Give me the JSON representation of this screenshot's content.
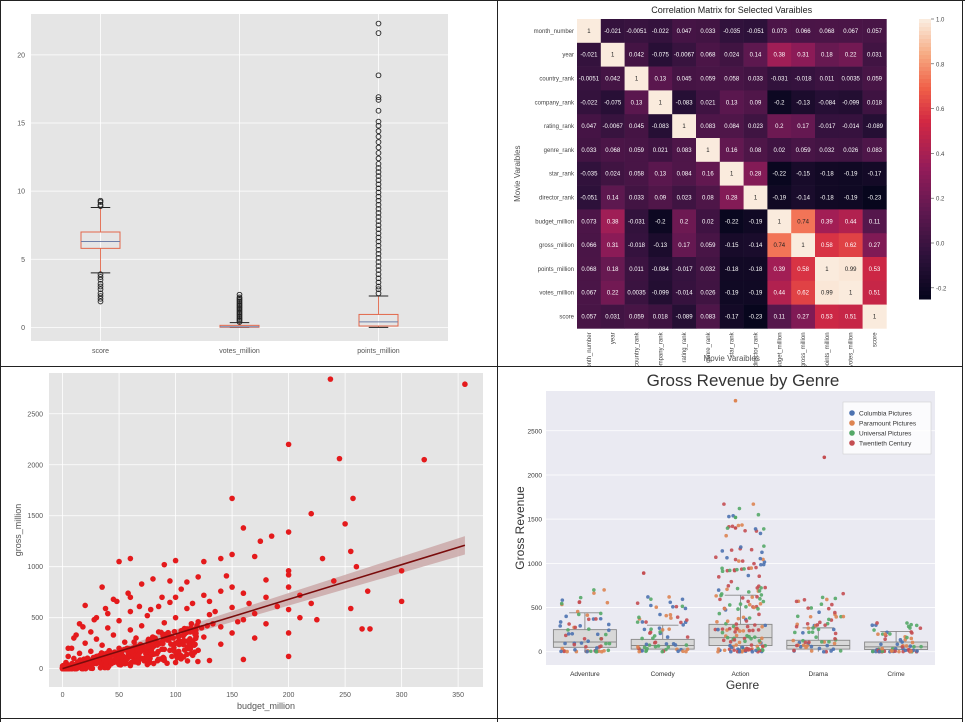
{
  "chart_data": [
    {
      "type": "box",
      "categories": [
        "score",
        "votes_million",
        "points_million"
      ],
      "yticks": [
        "0",
        "5",
        "10",
        "15",
        "20"
      ],
      "ylim": [
        -1,
        23
      ],
      "boxes": [
        {
          "name": "score",
          "q1": 5.8,
          "median": 6.3,
          "q3": 7.0,
          "whislo": 4.0,
          "whishi": 8.8,
          "outliers": [
            1.9,
            2.1,
            2.3,
            2.5,
            2.8,
            3.0,
            3.2,
            3.5,
            3.7,
            3.9,
            8.9,
            9.0,
            9.2,
            9.3
          ]
        },
        {
          "name": "votes_million",
          "q1": 0.01,
          "median": 0.05,
          "q3": 0.15,
          "whislo": 0.0,
          "whishi": 0.35,
          "outliers": [
            0.4,
            0.5,
            0.6,
            0.7,
            0.8,
            0.9,
            1.0,
            1.1,
            1.2,
            1.3,
            1.4,
            1.5,
            1.6,
            1.7,
            1.8,
            1.9,
            2.0,
            2.1,
            2.2,
            2.4
          ]
        },
        {
          "name": "points_million",
          "q1": 0.1,
          "median": 0.4,
          "q3": 0.95,
          "whislo": 0.0,
          "whishi": 2.3,
          "outliers": [
            2.5,
            2.8,
            3.0,
            3.3,
            3.6,
            3.9,
            4.2,
            4.5,
            4.8,
            5.1,
            5.4,
            5.7,
            6.0,
            6.3,
            6.6,
            6.9,
            7.2,
            7.5,
            7.8,
            8.1,
            8.4,
            8.7,
            9.0,
            9.3,
            9.6,
            9.9,
            10.2,
            10.5,
            10.8,
            11.1,
            11.4,
            11.7,
            12.0,
            12.4,
            12.8,
            13.2,
            13.6,
            14.0,
            14.4,
            14.8,
            15.1,
            15.9,
            16.7,
            16.9,
            18.5,
            21.6,
            22.3
          ]
        }
      ]
    },
    {
      "type": "heatmap",
      "title": "Correlation Matrix for Selected Varaibles",
      "xlabel": "Movie Varaibles",
      "ylabel": "Movie Varaibles",
      "labels": [
        "month_number",
        "year",
        "country_rank",
        "company_rank",
        "rating_rank",
        "genre_rank",
        "star_rank",
        "director_rank",
        "budget_million",
        "gross_million",
        "points_million",
        "votes_million",
        "score"
      ],
      "colorbar_ticks": [
        "1.0",
        "0.8",
        "0.6",
        "0.4",
        "0.2",
        "0.0",
        "-0.2"
      ],
      "matrix": [
        [
          "1",
          "-0.021",
          "-0.0051",
          "-0.022",
          "0.047",
          "0.033",
          "-0.035",
          "-0.051",
          "0.073",
          "0.066",
          "0.068",
          "0.067",
          "0.057"
        ],
        [
          "-0.021",
          "1",
          "0.042",
          "-0.075",
          "-0.0067",
          "0.068",
          "0.024",
          "0.14",
          "0.38",
          "0.31",
          "0.18",
          "0.22",
          "0.031"
        ],
        [
          "-0.0051",
          "0.042",
          "1",
          "0.13",
          "0.045",
          "0.059",
          "0.058",
          "0.033",
          "-0.031",
          "-0.018",
          "0.011",
          "0.0035",
          "0.059"
        ],
        [
          "-0.022",
          "-0.075",
          "0.13",
          "1",
          "-0.083",
          "0.021",
          "0.13",
          "0.09",
          "-0.2",
          "-0.13",
          "-0.084",
          "-0.099",
          "0.018"
        ],
        [
          "0.047",
          "-0.0067",
          "0.045",
          "-0.083",
          "1",
          "0.083",
          "0.084",
          "0.023",
          "0.2",
          "0.17",
          "-0.017",
          "-0.014",
          "-0.089"
        ],
        [
          "0.033",
          "0.068",
          "0.059",
          "0.021",
          "0.083",
          "1",
          "0.16",
          "0.08",
          "0.02",
          "0.059",
          "0.032",
          "0.026",
          "0.083"
        ],
        [
          "-0.035",
          "0.024",
          "0.058",
          "0.13",
          "0.084",
          "0.16",
          "1",
          "0.28",
          "-0.22",
          "-0.15",
          "-0.18",
          "-0.19",
          "-0.17"
        ],
        [
          "-0.051",
          "0.14",
          "0.033",
          "0.09",
          "0.023",
          "0.08",
          "0.28",
          "1",
          "-0.19",
          "-0.14",
          "-0.18",
          "-0.19",
          "-0.23"
        ],
        [
          "0.073",
          "0.38",
          "-0.031",
          "-0.2",
          "0.2",
          "0.02",
          "-0.22",
          "-0.19",
          "1",
          "0.74",
          "0.39",
          "0.44",
          "0.11"
        ],
        [
          "0.066",
          "0.31",
          "-0.018",
          "-0.13",
          "0.17",
          "0.059",
          "-0.15",
          "-0.14",
          "0.74",
          "1",
          "0.58",
          "0.62",
          "0.27"
        ],
        [
          "0.068",
          "0.18",
          "0.011",
          "-0.084",
          "-0.017",
          "0.032",
          "-0.18",
          "-0.18",
          "0.39",
          "0.58",
          "1",
          "0.99",
          "0.53"
        ],
        [
          "0.067",
          "0.22",
          "0.0035",
          "-0.099",
          "-0.014",
          "0.026",
          "-0.19",
          "-0.19",
          "0.44",
          "0.62",
          "0.99",
          "1",
          "0.51"
        ],
        [
          "0.057",
          "0.031",
          "0.059",
          "0.018",
          "-0.089",
          "0.083",
          "-0.17",
          "-0.23",
          "0.11",
          "0.27",
          "0.53",
          "0.51",
          "1"
        ]
      ]
    },
    {
      "type": "scatter",
      "xlabel": "budget_million",
      "ylabel": "gross_million",
      "xticks": [
        "0",
        "50",
        "100",
        "150",
        "200",
        "250",
        "300",
        "350"
      ],
      "yticks": [
        "0",
        "500",
        "1000",
        "1500",
        "2000",
        "2500"
      ],
      "xlim": [
        -12,
        372
      ],
      "ylim": [
        -180,
        2900
      ],
      "regression": {
        "x0": 0,
        "y0": 0,
        "x1": 356,
        "y1": 1210
      },
      "color": "#e41a1c",
      "points": [
        [
          237,
          2840
        ],
        [
          356,
          2790
        ],
        [
          200,
          2200
        ],
        [
          245,
          2060
        ],
        [
          320,
          2050
        ],
        [
          257,
          1670
        ],
        [
          150,
          1670
        ],
        [
          220,
          1520
        ],
        [
          250,
          1420
        ],
        [
          160,
          1380
        ],
        [
          200,
          1340
        ],
        [
          185,
          1300
        ],
        [
          175,
          1250
        ],
        [
          255,
          1150
        ],
        [
          150,
          1120
        ],
        [
          170,
          1100
        ],
        [
          140,
          1080
        ],
        [
          230,
          1080
        ],
        [
          125,
          1050
        ],
        [
          100,
          1060
        ],
        [
          60,
          1080
        ],
        [
          50,
          1050
        ],
        [
          90,
          1020
        ],
        [
          260,
          1000
        ],
        [
          200,
          960
        ],
        [
          300,
          960
        ],
        [
          200,
          920
        ],
        [
          145,
          910
        ],
        [
          120,
          900
        ],
        [
          80,
          880
        ],
        [
          95,
          860
        ],
        [
          180,
          870
        ],
        [
          240,
          860
        ],
        [
          110,
          850
        ],
        [
          70,
          830
        ],
        [
          35,
          800
        ],
        [
          150,
          800
        ],
        [
          200,
          800
        ],
        [
          140,
          760
        ],
        [
          270,
          760
        ],
        [
          160,
          740
        ],
        [
          125,
          720
        ],
        [
          60,
          700
        ],
        [
          100,
          700
        ],
        [
          180,
          700
        ],
        [
          45,
          680
        ],
        [
          95,
          650
        ],
        [
          130,
          660
        ],
        [
          300,
          660
        ],
        [
          220,
          640
        ],
        [
          20,
          620
        ],
        [
          85,
          610
        ],
        [
          150,
          600
        ],
        [
          255,
          590
        ],
        [
          110,
          590
        ],
        [
          200,
          580
        ],
        [
          60,
          560
        ],
        [
          40,
          540
        ],
        [
          170,
          540
        ],
        [
          130,
          530
        ],
        [
          75,
          520
        ],
        [
          30,
          500
        ],
        [
          100,
          500
        ],
        [
          210,
          500
        ],
        [
          160,
          480
        ],
        [
          50,
          470
        ],
        [
          120,
          460
        ],
        [
          90,
          450
        ],
        [
          15,
          440
        ],
        [
          180,
          440
        ],
        [
          70,
          420
        ],
        [
          140,
          410
        ],
        [
          40,
          400
        ],
        [
          265,
          390
        ],
        [
          272,
          390
        ],
        [
          110,
          390
        ],
        [
          60,
          380
        ],
        [
          25,
          360
        ],
        [
          85,
          360
        ],
        [
          200,
          350
        ],
        [
          150,
          350
        ],
        [
          45,
          330
        ],
        [
          95,
          320
        ],
        [
          125,
          310
        ],
        [
          10,
          300
        ],
        [
          65,
          300
        ],
        [
          170,
          300
        ],
        [
          30,
          290
        ],
        [
          80,
          280
        ],
        [
          115,
          270
        ],
        [
          55,
          260
        ],
        [
          20,
          250
        ],
        [
          100,
          250
        ],
        [
          140,
          240
        ],
        [
          35,
          230
        ],
        [
          75,
          220
        ],
        [
          5,
          200
        ],
        [
          50,
          200
        ],
        [
          90,
          190
        ],
        [
          120,
          180
        ],
        [
          25,
          170
        ],
        [
          60,
          170
        ],
        [
          15,
          150
        ],
        [
          40,
          150
        ],
        [
          80,
          140
        ],
        [
          110,
          140
        ],
        [
          5,
          120
        ],
        [
          30,
          120
        ],
        [
          55,
          110
        ],
        [
          70,
          100
        ],
        [
          10,
          100
        ],
        [
          20,
          90
        ],
        [
          45,
          80
        ],
        [
          65,
          70
        ],
        [
          90,
          80
        ],
        [
          3,
          60
        ],
        [
          15,
          60
        ],
        [
          30,
          50
        ],
        [
          50,
          40
        ],
        [
          8,
          30
        ],
        [
          2,
          20
        ],
        [
          20,
          20
        ],
        [
          35,
          25
        ],
        [
          12,
          10
        ],
        [
          25,
          5
        ],
        [
          40,
          10
        ],
        [
          60,
          30
        ],
        [
          75,
          40
        ],
        [
          100,
          60
        ],
        [
          130,
          80
        ],
        [
          160,
          90
        ],
        [
          200,
          120
        ],
        [
          8,
          200
        ],
        [
          12,
          330
        ],
        [
          18,
          410
        ],
        [
          28,
          480
        ],
        [
          38,
          590
        ],
        [
          48,
          660
        ],
        [
          58,
          740
        ],
        [
          68,
          610
        ],
        [
          78,
          580
        ],
        [
          88,
          700
        ],
        [
          105,
          780
        ],
        [
          115,
          640
        ],
        [
          135,
          560
        ],
        [
          155,
          460
        ],
        [
          165,
          640
        ],
        [
          190,
          610
        ],
        [
          210,
          720
        ],
        [
          225,
          480
        ],
        [
          1,
          5
        ],
        [
          4,
          12
        ],
        [
          6,
          18
        ],
        [
          9,
          22
        ],
        [
          11,
          35
        ],
        [
          14,
          45
        ],
        [
          17,
          52
        ],
        [
          22,
          68
        ],
        [
          27,
          75
        ],
        [
          33,
          90
        ],
        [
          38,
          105
        ],
        [
          42,
          120
        ],
        [
          47,
          135
        ],
        [
          52,
          150
        ],
        [
          58,
          165
        ],
        [
          63,
          180
        ],
        [
          68,
          195
        ],
        [
          72,
          210
        ],
        [
          78,
          230
        ],
        [
          83,
          245
        ],
        [
          88,
          260
        ],
        [
          93,
          280
        ],
        [
          98,
          300
        ],
        [
          103,
          320
        ],
        [
          108,
          340
        ],
        [
          113,
          360
        ],
        [
          118,
          380
        ],
        [
          123,
          400
        ],
        [
          128,
          420
        ],
        [
          133,
          440
        ]
      ]
    },
    {
      "type": "strip+box",
      "title": "Gross Revenue by Genre",
      "xlabel": "Genre",
      "ylabel": "Gross Revenue",
      "categories": [
        "Adventure",
        "Comedy",
        "Action",
        "Drama",
        "Crime"
      ],
      "yticks": [
        "0",
        "500",
        "1000",
        "1500",
        "2000",
        "2500"
      ],
      "ylim": [
        -150,
        2950
      ],
      "legend": [
        {
          "name": "Columbia Pictures",
          "color": "#4c72b0"
        },
        {
          "name": "Paramount Pictures",
          "color": "#dd8452"
        },
        {
          "name": "Universal Pictures",
          "color": "#55a868"
        },
        {
          "name": "Twentieth Century",
          "color": "#c44e52"
        }
      ],
      "boxes": [
        {
          "q1": 50,
          "median": 110,
          "q3": 250,
          "whislo": 0,
          "whishi": 440,
          "spread": [
            0,
            700
          ]
        },
        {
          "q1": 30,
          "median": 70,
          "q3": 140,
          "whislo": 0,
          "whishi": 300,
          "spread": [
            0,
            620
          ]
        },
        {
          "q1": 70,
          "median": 160,
          "q3": 310,
          "whislo": 0,
          "whishi": 640,
          "spread": [
            0,
            1670
          ]
        },
        {
          "q1": 30,
          "median": 70,
          "q3": 130,
          "whislo": 0,
          "whishi": 270,
          "spread": [
            0,
            690
          ]
        },
        {
          "q1": 25,
          "median": 55,
          "q3": 110,
          "whislo": 0,
          "whishi": 230,
          "spread": [
            0,
            340
          ]
        }
      ],
      "highlights": [
        {
          "cat": 2,
          "value": 2840,
          "color": "#dd8452"
        },
        {
          "cat": 3,
          "value": 2200,
          "color": "#c44e52"
        },
        {
          "cat": 2,
          "value": 1520,
          "color": "#55a868"
        },
        {
          "cat": 2,
          "value": 1400,
          "color": "#c44e52"
        },
        {
          "cat": 1,
          "value": 890,
          "color": "#c44e52"
        }
      ]
    }
  ]
}
